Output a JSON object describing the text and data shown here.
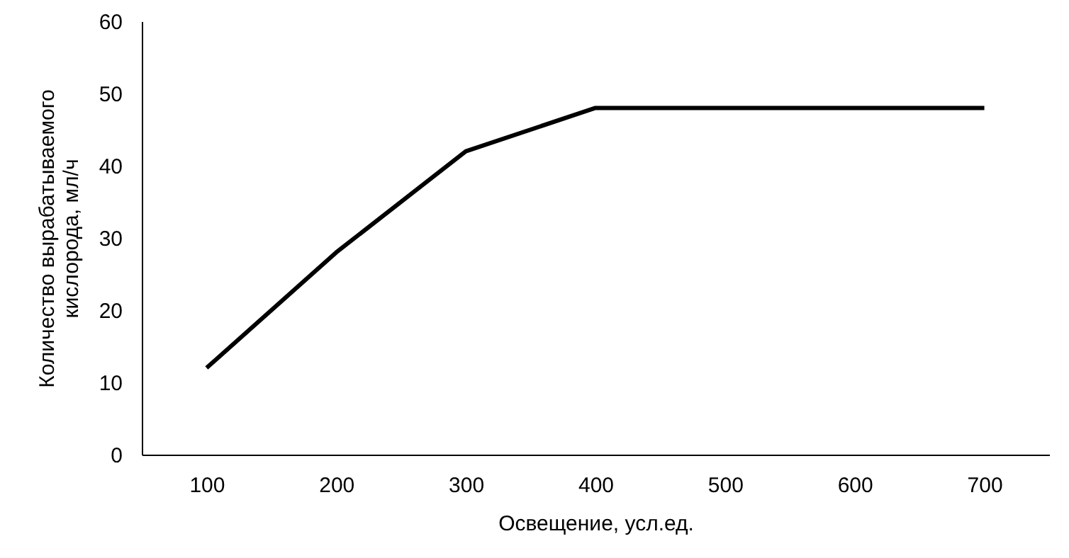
{
  "chart_data": {
    "type": "line",
    "xlabel": "Освещение, усл.ед.",
    "ylabel": "Количество вырабатываемого кислорода, мл/ч",
    "x": [
      100,
      200,
      300,
      400,
      500,
      600,
      700
    ],
    "series": [
      {
        "color": "#000000",
        "values": [
          12,
          28,
          42,
          48,
          48,
          48,
          48
        ]
      }
    ],
    "xlim": [
      50,
      750
    ],
    "xticks": [
      100,
      200,
      300,
      400,
      500,
      600,
      700
    ],
    "ylim": [
      0,
      60
    ],
    "yticks": [
      0,
      10,
      20,
      30,
      40,
      50,
      60
    ],
    "grid": false,
    "marker": "none",
    "line_style": "solid"
  }
}
